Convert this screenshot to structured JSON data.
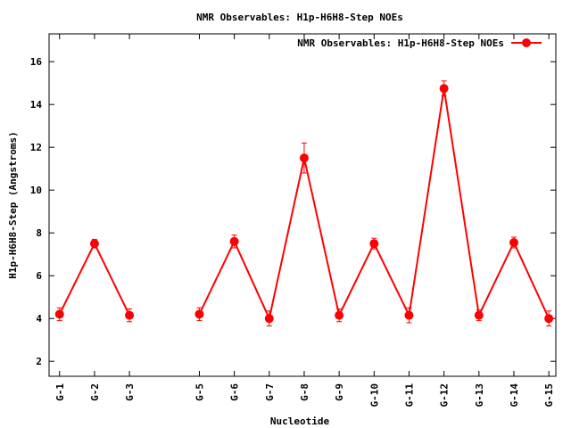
{
  "chart_data": {
    "type": "line",
    "title": "NMR Observables: H1p-H6H8-Step NOEs",
    "xlabel": "Nucleotide",
    "ylabel": "H1p-H6H8-Step (Angstroms)",
    "ylim": [
      1.3,
      17.3
    ],
    "yticks": [
      2,
      4,
      6,
      8,
      10,
      12,
      14,
      16
    ],
    "xlim": [
      0.7,
      15.2
    ],
    "categories": [
      "G-1",
      "G-2",
      "G-3",
      "G-5",
      "G-6",
      "G-7",
      "G-8",
      "G-9",
      "G-10",
      "G-11",
      "G-12",
      "G-13",
      "G-14",
      "G-15"
    ],
    "category_x": [
      1,
      2,
      3,
      5,
      6,
      7,
      8,
      9,
      10,
      11,
      12,
      13,
      14,
      15
    ],
    "grid": false,
    "legend_position": "top-right",
    "series": [
      {
        "name": "NMR Observables: H1p-H6H8-Step NOEs",
        "color": "#ff0000",
        "segments": [
          [
            {
              "x": 1,
              "y": 4.2,
              "err": 0.3
            },
            {
              "x": 2,
              "y": 7.5,
              "err": 0.2
            },
            {
              "x": 3,
              "y": 4.15,
              "err": 0.3
            }
          ],
          [
            {
              "x": 5,
              "y": 4.2,
              "err": 0.3
            },
            {
              "x": 6,
              "y": 7.6,
              "err": 0.3
            },
            {
              "x": 7,
              "y": 4.0,
              "err": 0.35
            },
            {
              "x": 8,
              "y": 11.5,
              "err": 0.7
            },
            {
              "x": 9,
              "y": 4.15,
              "err": 0.3
            },
            {
              "x": 10,
              "y": 7.5,
              "err": 0.25
            },
            {
              "x": 11,
              "y": 4.15,
              "err": 0.35
            },
            {
              "x": 12,
              "y": 14.75,
              "err": 0.35
            },
            {
              "x": 13,
              "y": 4.15,
              "err": 0.25
            },
            {
              "x": 14,
              "y": 7.55,
              "err": 0.25
            },
            {
              "x": 15,
              "y": 4.0,
              "err": 0.35
            }
          ]
        ]
      }
    ]
  }
}
